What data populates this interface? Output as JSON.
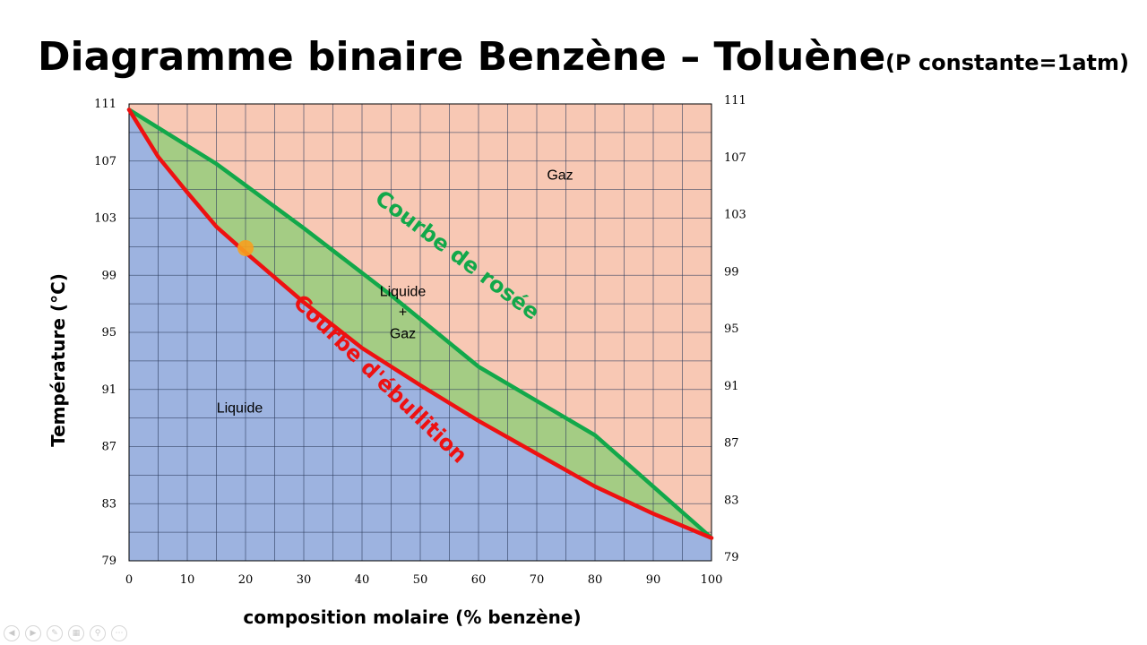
{
  "title": "Diagramme binaire Benzène – Toluène",
  "subtitle": "(P constante=1atm)",
  "chart_data": {
    "type": "line",
    "xlabel": "composition molaire (% benzène)",
    "ylabel": "Température (°C)",
    "xlim": [
      0,
      100
    ],
    "ylim": [
      79,
      111
    ],
    "xticks": [
      0,
      10,
      20,
      30,
      40,
      50,
      60,
      70,
      80,
      90,
      100
    ],
    "yticks": [
      79,
      83,
      87,
      91,
      95,
      99,
      103,
      107,
      111
    ],
    "grid": true,
    "series": [
      {
        "name": "Courbe de rosée",
        "color": "#12a84a",
        "x": [
          0,
          15,
          30,
          45,
          60,
          80,
          100
        ],
        "y": [
          110.6,
          106.8,
          102.3,
          97.6,
          92.6,
          87.8,
          80.6
        ]
      },
      {
        "name": "Courbe d'ébullition",
        "color": "#ee1111",
        "x": [
          0,
          5,
          10,
          15,
          20,
          30,
          40,
          50,
          60,
          70,
          80,
          90,
          100
        ],
        "y": [
          110.6,
          107.3,
          104.8,
          102.4,
          100.6,
          97.1,
          93.9,
          91.3,
          88.8,
          86.5,
          84.2,
          82.3,
          80.6
        ]
      }
    ],
    "regions": [
      {
        "label": "Gaz",
        "color": "#f8c8b4",
        "x": 74,
        "y": 106
      },
      {
        "label": "Liquide",
        "color": "#9db3e0",
        "x": 19,
        "y": 89.7
      },
      {
        "label_lines": [
          "Liquide",
          "+",
          "Gaz"
        ],
        "color": "#a4cc84",
        "x": 47,
        "y": 96.3
      }
    ],
    "marker": {
      "x": 20,
      "y": 100.9,
      "color": "#f7a01e"
    }
  }
}
